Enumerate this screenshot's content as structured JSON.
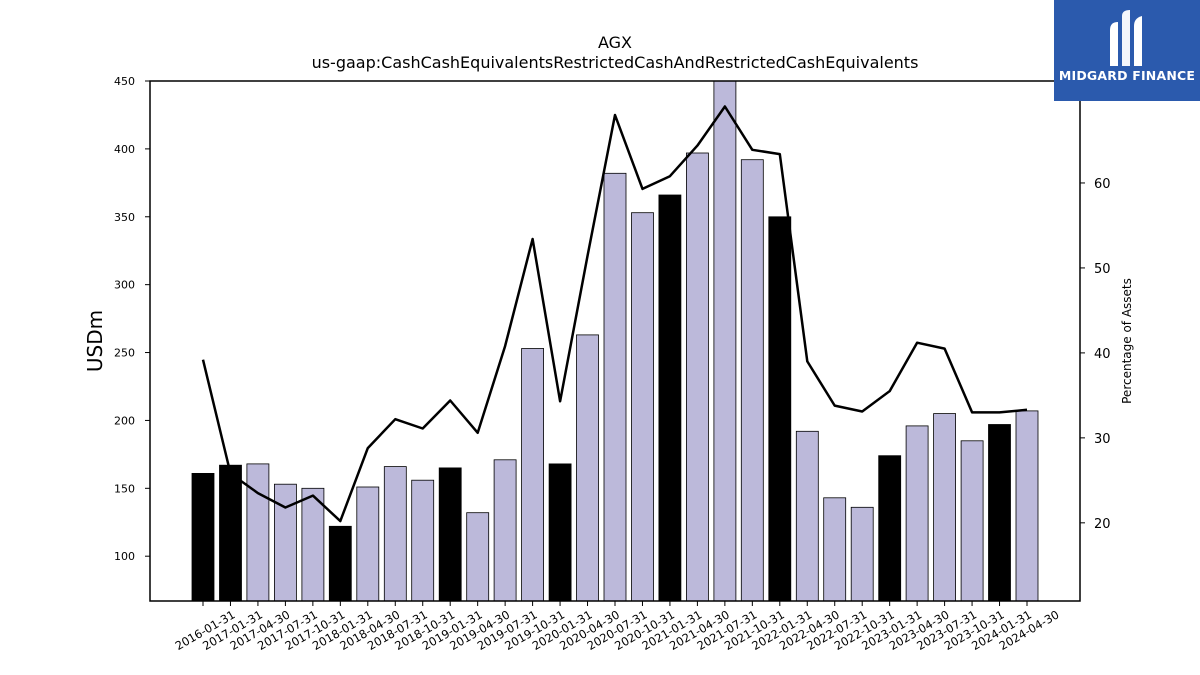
{
  "chart_data": {
    "type": "bar",
    "title": "AGX",
    "subtitle": "us-gaap:CashCashEquivalentsRestrictedCashAndRestrictedCashEquivalents",
    "ylabel": "USDm",
    "y2label": "Percentage of Assets",
    "ylim": [
      67,
      450
    ],
    "y2lim": [
      10.8,
      72
    ],
    "yticks": [
      100,
      150,
      200,
      250,
      300,
      350,
      400,
      450
    ],
    "y2ticks": [
      20,
      30,
      40,
      50,
      60
    ],
    "grid": false,
    "categories": [
      "2016-01-31",
      "2017-01-31",
      "2017-04-30",
      "2017-07-31",
      "2017-10-31",
      "2018-01-31",
      "2018-04-30",
      "2018-07-31",
      "2018-10-31",
      "2019-01-31",
      "2019-04-30",
      "2019-07-31",
      "2019-10-31",
      "2020-01-31",
      "2020-04-30",
      "2020-07-31",
      "2020-10-31",
      "2021-01-31",
      "2021-04-30",
      "2021-07-31",
      "2021-10-31",
      "2022-01-31",
      "2022-04-30",
      "2022-07-31",
      "2022-10-31",
      "2023-01-31",
      "2023-04-30",
      "2023-07-31",
      "2023-10-31",
      "2024-01-31",
      "2024-04-30"
    ],
    "series": [
      {
        "type": "bar",
        "axis": "left",
        "values": [
          161,
          167,
          168,
          153,
          150,
          122,
          151,
          166,
          156,
          165,
          132,
          171,
          253,
          168,
          263,
          382,
          353,
          366,
          397,
          455,
          392,
          350,
          192,
          143,
          136,
          174,
          196,
          205,
          185,
          197,
          207
        ],
        "fiscal_year_end": [
          true,
          true,
          false,
          false,
          false,
          true,
          false,
          false,
          false,
          true,
          false,
          false,
          false,
          true,
          false,
          false,
          false,
          true,
          false,
          false,
          false,
          true,
          false,
          false,
          false,
          true,
          false,
          false,
          false,
          true,
          false
        ]
      },
      {
        "type": "line",
        "axis": "right",
        "values": [
          39.2,
          25.8,
          23.5,
          21.8,
          23.2,
          20.2,
          28.8,
          32.2,
          31.1,
          34.4,
          30.6,
          40.8,
          53.4,
          34.3,
          51.4,
          68.0,
          59.3,
          60.8,
          64.4,
          69.0,
          63.9,
          63.4,
          39.0,
          33.8,
          33.1,
          35.5,
          41.2,
          40.5,
          33.0,
          33.0,
          33.3
        ]
      }
    ],
    "colors": {
      "bar_fiscal": "#000000",
      "bar_other": "#bcb9da",
      "line": "#000000"
    }
  },
  "logo": {
    "text": "MIDGARD FINANCE",
    "color": "#2b5aad"
  }
}
